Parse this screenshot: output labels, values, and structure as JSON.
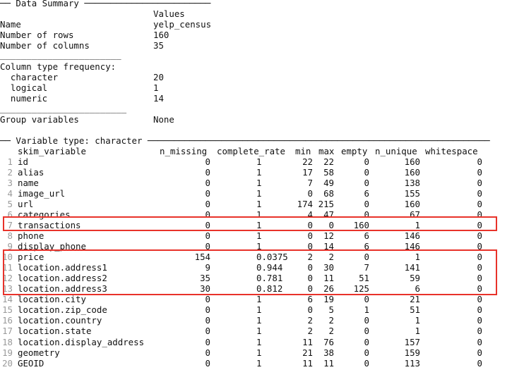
{
  "summary_header": "── Data Summary ────────────────────────",
  "summary_col_header": "Values",
  "summary_rows": [
    {
      "label": "Name",
      "value": "yelp_census"
    },
    {
      "label": "Number of rows",
      "value": "160"
    },
    {
      "label": "Number of columns",
      "value": "35"
    }
  ],
  "separator1": "_______________________",
  "coltype_header": "Column type frequency:",
  "coltype_rows": [
    {
      "label": "  character",
      "value": "20"
    },
    {
      "label": "  logical",
      "value": "1"
    },
    {
      "label": "  numeric",
      "value": "14"
    }
  ],
  "separator2": "________________________",
  "group_label": "Group variables",
  "group_value": "None",
  "vartype_header": "── Variable type: character ─────────────────────────────────────────────────────────────────",
  "columns": [
    "skim_variable",
    "n_missing",
    "complete_rate",
    "min",
    "max",
    "empty",
    "n_unique",
    "whitespace"
  ],
  "rows": [
    {
      "n": "1",
      "var": "id",
      "n_missing": "0",
      "complete_rate": "1",
      "min": "22",
      "max": "22",
      "empty": "0",
      "n_unique": "160",
      "whitespace": "0"
    },
    {
      "n": "2",
      "var": "alias",
      "n_missing": "0",
      "complete_rate": "1",
      "min": "17",
      "max": "58",
      "empty": "0",
      "n_unique": "160",
      "whitespace": "0"
    },
    {
      "n": "3",
      "var": "name",
      "n_missing": "0",
      "complete_rate": "1",
      "min": "7",
      "max": "49",
      "empty": "0",
      "n_unique": "138",
      "whitespace": "0"
    },
    {
      "n": "4",
      "var": "image_url",
      "n_missing": "0",
      "complete_rate": "1",
      "min": "0",
      "max": "68",
      "empty": "6",
      "n_unique": "155",
      "whitespace": "0"
    },
    {
      "n": "5",
      "var": "url",
      "n_missing": "0",
      "complete_rate": "1",
      "min": "174",
      "max": "215",
      "empty": "0",
      "n_unique": "160",
      "whitespace": "0"
    },
    {
      "n": "6",
      "var": "categories",
      "n_missing": "0",
      "complete_rate": "1",
      "min": "4",
      "max": "47",
      "empty": "0",
      "n_unique": "67",
      "whitespace": "0"
    },
    {
      "n": "7",
      "var": "transactions",
      "n_missing": "0",
      "complete_rate": "1",
      "min": "0",
      "max": "0",
      "empty": "160",
      "n_unique": "1",
      "whitespace": "0"
    },
    {
      "n": "8",
      "var": "phone",
      "n_missing": "0",
      "complete_rate": "1",
      "min": "0",
      "max": "12",
      "empty": "6",
      "n_unique": "146",
      "whitespace": "0"
    },
    {
      "n": "9",
      "var": "display_phone",
      "n_missing": "0",
      "complete_rate": "1",
      "min": "0",
      "max": "14",
      "empty": "6",
      "n_unique": "146",
      "whitespace": "0"
    },
    {
      "n": "10",
      "var": "price",
      "n_missing": "154",
      "complete_rate": "0.0375",
      "min": "2",
      "max": "2",
      "empty": "0",
      "n_unique": "1",
      "whitespace": "0"
    },
    {
      "n": "11",
      "var": "location.address1",
      "n_missing": "9",
      "complete_rate": "0.944",
      "min": "0",
      "max": "30",
      "empty": "7",
      "n_unique": "141",
      "whitespace": "0"
    },
    {
      "n": "12",
      "var": "location.address2",
      "n_missing": "35",
      "complete_rate": "0.781",
      "min": "0",
      "max": "11",
      "empty": "51",
      "n_unique": "59",
      "whitespace": "0"
    },
    {
      "n": "13",
      "var": "location.address3",
      "n_missing": "30",
      "complete_rate": "0.812",
      "min": "0",
      "max": "26",
      "empty": "125",
      "n_unique": "6",
      "whitespace": "0"
    },
    {
      "n": "14",
      "var": "location.city",
      "n_missing": "0",
      "complete_rate": "1",
      "min": "6",
      "max": "19",
      "empty": "0",
      "n_unique": "21",
      "whitespace": "0"
    },
    {
      "n": "15",
      "var": "location.zip_code",
      "n_missing": "0",
      "complete_rate": "1",
      "min": "0",
      "max": "5",
      "empty": "1",
      "n_unique": "51",
      "whitespace": "0"
    },
    {
      "n": "16",
      "var": "location.country",
      "n_missing": "0",
      "complete_rate": "1",
      "min": "2",
      "max": "2",
      "empty": "0",
      "n_unique": "1",
      "whitespace": "0"
    },
    {
      "n": "17",
      "var": "location.state",
      "n_missing": "0",
      "complete_rate": "1",
      "min": "2",
      "max": "2",
      "empty": "0",
      "n_unique": "1",
      "whitespace": "0"
    },
    {
      "n": "18",
      "var": "location.display_address",
      "n_missing": "0",
      "complete_rate": "1",
      "min": "11",
      "max": "76",
      "empty": "0",
      "n_unique": "157",
      "whitespace": "0"
    },
    {
      "n": "19",
      "var": "geometry",
      "n_missing": "0",
      "complete_rate": "1",
      "min": "21",
      "max": "38",
      "empty": "0",
      "n_unique": "159",
      "whitespace": "0"
    },
    {
      "n": "20",
      "var": "GEOID",
      "n_missing": "0",
      "complete_rate": "1",
      "min": "11",
      "max": "11",
      "empty": "0",
      "n_unique": "113",
      "whitespace": "0"
    }
  ],
  "highlight_color": "#e8322a",
  "row_number_color": "#9a9a9a"
}
